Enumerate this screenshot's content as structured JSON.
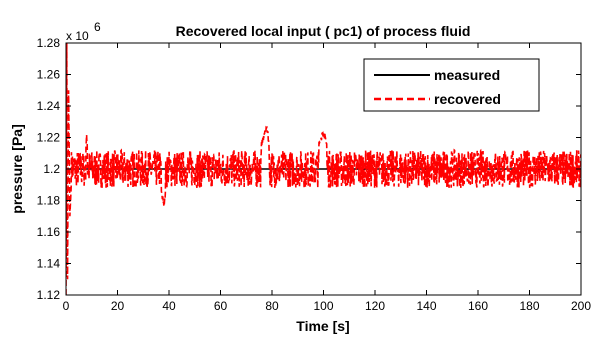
{
  "chart_data": {
    "type": "line",
    "title": "Recovered local input ( pc1) of process fluid",
    "xlabel": "Time [s]",
    "ylabel": "pressure [Pa]",
    "xlim": [
      0,
      200
    ],
    "ylim": [
      1.12,
      1.28
    ],
    "y_multiplier": {
      "base": "x 10",
      "exponent": "6"
    },
    "xticks": [
      0,
      20,
      40,
      60,
      80,
      100,
      120,
      140,
      160,
      180,
      200
    ],
    "yticks": [
      1.12,
      1.14,
      1.16,
      1.18,
      1.2,
      1.22,
      1.24,
      1.26,
      1.28
    ],
    "xtick_labels": [
      "0",
      "20",
      "40",
      "60",
      "80",
      "100",
      "120",
      "140",
      "160",
      "180",
      "200"
    ],
    "ytick_labels": [
      "1.12",
      "1.14",
      "1.16",
      "1.18",
      "1.2",
      "1.22",
      "1.24",
      "1.26",
      "1.28"
    ],
    "grid": false,
    "legend_position": "top-right",
    "series": [
      {
        "name": "measured",
        "color": "#000000",
        "style": "solid",
        "x": [
          0,
          200
        ],
        "y": [
          1.2,
          1.2
        ]
      },
      {
        "name": "recovered",
        "color": "#ff0000",
        "style": "dashed",
        "x": [
          0,
          0.3,
          0.6,
          1.0,
          1.5,
          2,
          4,
          6,
          8,
          10,
          15,
          20,
          25,
          30,
          35,
          38,
          40,
          45,
          50,
          55,
          60,
          65,
          70,
          75,
          78,
          80,
          85,
          90,
          95,
          100,
          105,
          110,
          115,
          120,
          125,
          130,
          135,
          140,
          145,
          150,
          155,
          160,
          165,
          170,
          175,
          180,
          185,
          190,
          195,
          200
        ],
        "y": [
          1.12,
          1.28,
          1.13,
          1.25,
          1.17,
          1.2,
          1.21,
          1.19,
          1.22,
          1.19,
          1.2,
          1.2,
          1.21,
          1.19,
          1.2,
          1.177,
          1.2,
          1.21,
          1.19,
          1.2,
          1.21,
          1.19,
          1.2,
          1.21,
          1.227,
          1.2,
          1.19,
          1.21,
          1.2,
          1.224,
          1.19,
          1.2,
          1.21,
          1.2,
          1.19,
          1.21,
          1.2,
          1.19,
          1.21,
          1.2,
          1.19,
          1.2,
          1.21,
          1.2,
          1.19,
          1.21,
          1.2,
          1.19,
          1.2,
          1.2
        ]
      }
    ],
    "noise_amplitude_recovered": 0.012
  }
}
